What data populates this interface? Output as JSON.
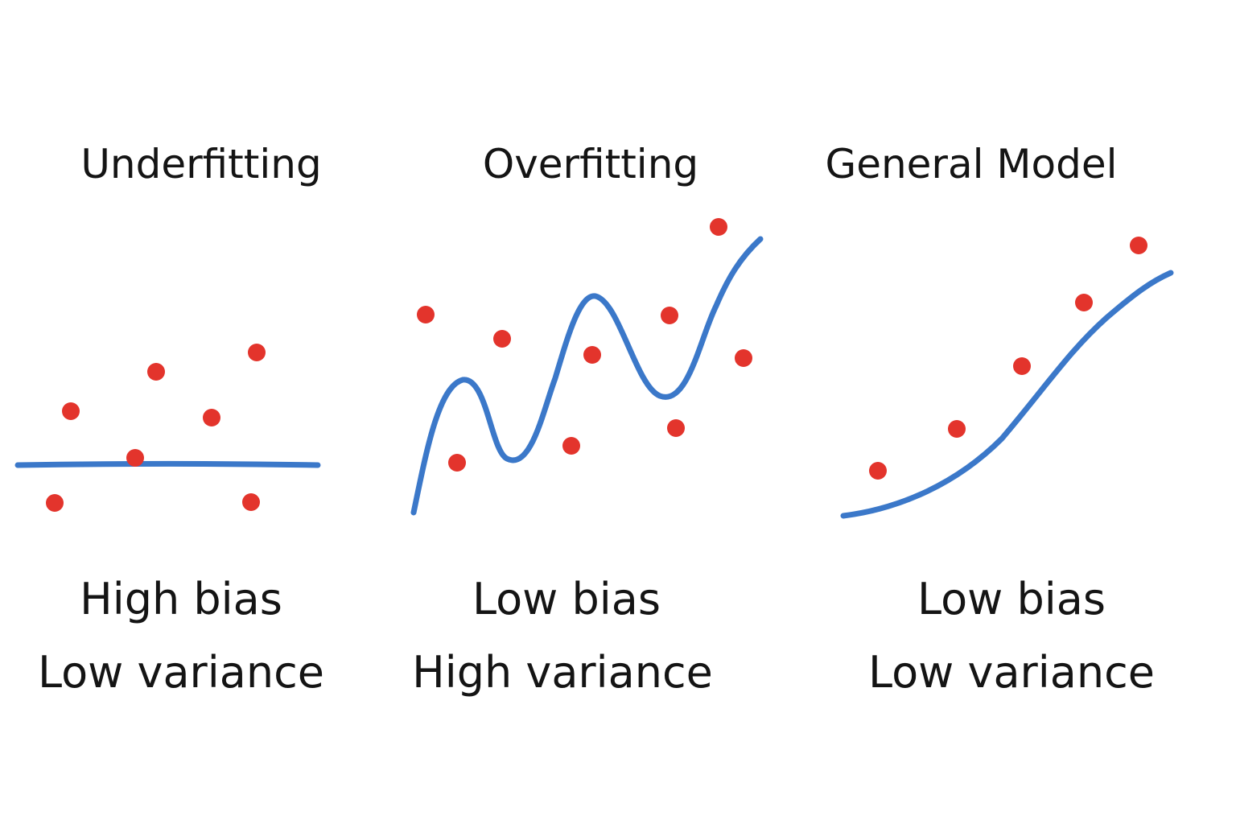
{
  "colors": {
    "curve": "#3b78c9",
    "point": "#e3342c",
    "text": "#141414",
    "background": "#ffffff"
  },
  "panels": [
    {
      "title": "Underfitting",
      "bias": "High bias",
      "variance": "Low variance"
    },
    {
      "title": "Overfitting",
      "bias": "Low bias",
      "variance": "High variance"
    },
    {
      "title": "General Model",
      "bias": "Low bias",
      "variance": "Low variance"
    }
  ]
}
